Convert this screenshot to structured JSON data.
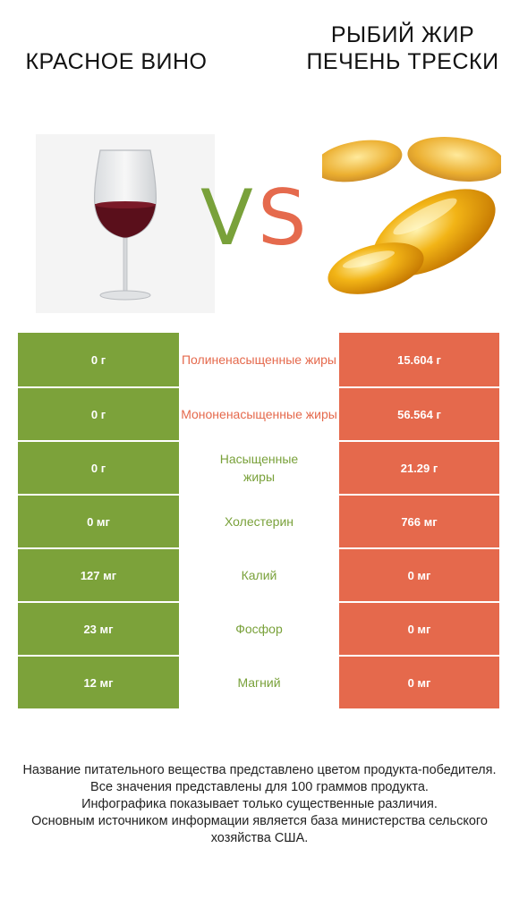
{
  "left_product": {
    "title": "КРАСНОЕ ВИНО",
    "color": "#7ca23a",
    "image_icon": "wine-glass-icon"
  },
  "right_product": {
    "title": "РЫБИЙ ЖИР ПЕЧЕНЬ ТРЕСКИ",
    "color": "#e5694c",
    "image_icon": "fish-oil-capsules-icon"
  },
  "vs": {
    "v": "V",
    "s": "S"
  },
  "rows": [
    {
      "left": "0 г",
      "nutrient": "Полиненасыщенные жиры",
      "right": "15.604 г",
      "winner": "right"
    },
    {
      "left": "0 г",
      "nutrient": "Мононенасыщенные жиры",
      "right": "56.564 г",
      "winner": "right"
    },
    {
      "left": "0 г",
      "nutrient": "Насыщенные жиры",
      "right": "21.29 г",
      "winner": "left"
    },
    {
      "left": "0 мг",
      "nutrient": "Холестерин",
      "right": "766 мг",
      "winner": "left"
    },
    {
      "left": "127 мг",
      "nutrient": "Калий",
      "right": "0 мг",
      "winner": "left"
    },
    {
      "left": "23 мг",
      "nutrient": "Фосфор",
      "right": "0 мг",
      "winner": "left"
    },
    {
      "left": "12 мг",
      "nutrient": "Магний",
      "right": "0 мг",
      "winner": "left"
    }
  ],
  "footer": [
    "Название питательного вещества представлено цветом продукта-победителя.",
    "Все значения представлены для 100 граммов продукта.",
    "Инфографика показывает только существенные различия.",
    "Основным источником информации является база министерства сельского хозяйства США."
  ]
}
